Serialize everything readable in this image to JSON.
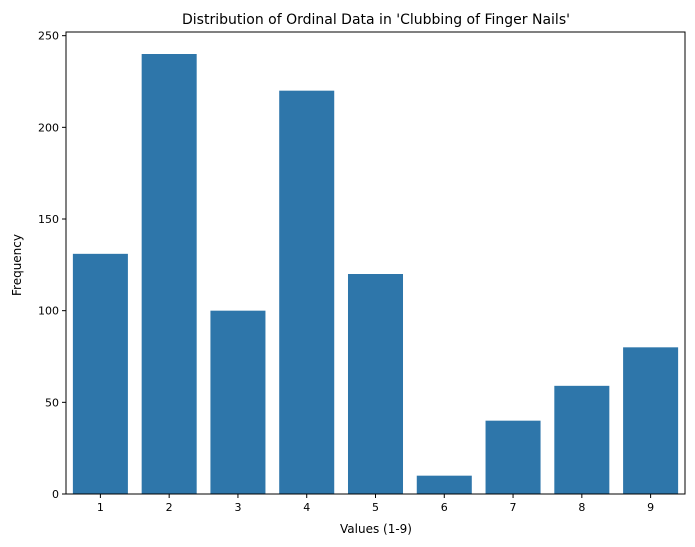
{
  "chart_data": {
    "type": "bar",
    "title": "Distribution of Ordinal Data in 'Clubbing of Finger Nails'",
    "xlabel": "Values (1-9)",
    "ylabel": "Frequency",
    "categories": [
      "1",
      "2",
      "3",
      "4",
      "5",
      "6",
      "7",
      "8",
      "9"
    ],
    "values": [
      131,
      240,
      100,
      220,
      120,
      10,
      40,
      59,
      80
    ],
    "ylim": [
      0,
      252
    ],
    "yticks": [
      0,
      50,
      100,
      150,
      200,
      250
    ],
    "bar_color": "#2e76aa",
    "grid": false,
    "legend": "none"
  }
}
